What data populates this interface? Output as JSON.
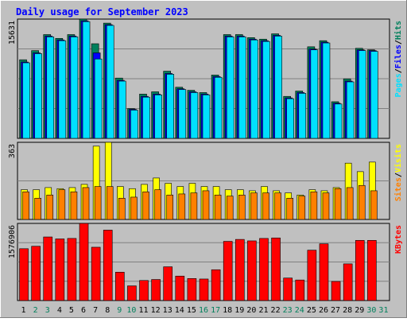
{
  "chart_data": [
    {
      "type": "bar",
      "title": "Daily usage for September 2023",
      "ymax_label": "15631",
      "ylim": [
        0,
        15631
      ],
      "categories": [
        "1",
        "2",
        "3",
        "4",
        "5",
        "6",
        "7",
        "8",
        "9",
        "10",
        "11",
        "12",
        "13",
        "14",
        "15",
        "16",
        "17",
        "18",
        "19",
        "20",
        "21",
        "22",
        "23",
        "24",
        "25",
        "26",
        "27",
        "28",
        "29",
        "30",
        "31"
      ],
      "weekend_days": [
        "2",
        "3",
        "9",
        "10",
        "16",
        "17",
        "23",
        "24",
        "30",
        "31"
      ],
      "legend": [
        "Pages",
        "Files",
        "Hits"
      ],
      "legend_separator": "/",
      "series": [
        {
          "name": "Hits",
          "color": "#00805c",
          "values": [
            10300,
            11500,
            13600,
            13100,
            13600,
            15631,
            12400,
            15100,
            7900,
            3900,
            5800,
            6100,
            8800,
            6700,
            6300,
            6000,
            8300,
            13600,
            13600,
            13200,
            13000,
            13700,
            5500,
            6200,
            12000,
            12800,
            4800,
            7800,
            11800,
            11600,
            null
          ]
        },
        {
          "name": "Files",
          "color": "#0000ff",
          "values": [
            10000,
            11200,
            13400,
            12900,
            13400,
            15400,
            11200,
            14900,
            7600,
            3800,
            5500,
            5800,
            8500,
            6500,
            6100,
            5800,
            8100,
            13400,
            13400,
            13000,
            12800,
            13500,
            5300,
            6000,
            11700,
            12600,
            4600,
            7500,
            11600,
            11500,
            null
          ]
        },
        {
          "name": "Pages",
          "color": "#00e0ff",
          "values": [
            9900,
            11100,
            13300,
            12800,
            13300,
            15300,
            10400,
            14800,
            7500,
            3700,
            5400,
            5700,
            8400,
            6400,
            6000,
            5700,
            8000,
            13300,
            13300,
            12900,
            12700,
            13400,
            5200,
            5900,
            11600,
            12500,
            4500,
            7400,
            11500,
            11400,
            null
          ]
        }
      ]
    },
    {
      "type": "bar",
      "ymax_label": "363",
      "ylim": [
        0,
        363
      ],
      "legend": [
        "Sites",
        "Visits"
      ],
      "legend_separator": "/",
      "series": [
        {
          "name": "Visits",
          "color": "#ffff00",
          "values": [
            140,
            140,
            150,
            145,
            150,
            165,
            345,
            363,
            155,
            145,
            165,
            195,
            170,
            155,
            170,
            155,
            155,
            140,
            140,
            135,
            155,
            135,
            125,
            115,
            140,
            135,
            150,
            265,
            225,
            270,
            null
          ]
        },
        {
          "name": "Sites",
          "color": "#ff8000",
          "values": [
            130,
            100,
            115,
            140,
            130,
            150,
            155,
            155,
            100,
            105,
            130,
            140,
            115,
            120,
            125,
            135,
            115,
            110,
            115,
            125,
            125,
            125,
            100,
            110,
            130,
            125,
            145,
            150,
            160,
            135,
            null
          ]
        }
      ]
    },
    {
      "type": "bar",
      "ymax_label": "1576906",
      "ylim": [
        0,
        1576906
      ],
      "legend": [
        "KBytes"
      ],
      "series": [
        {
          "name": "KBytes",
          "color": "#ff0000",
          "values": [
            1060000,
            1110000,
            1300000,
            1260000,
            1270000,
            1576906,
            1090000,
            1440000,
            580000,
            300000,
            410000,
            430000,
            690000,
            500000,
            450000,
            440000,
            630000,
            1210000,
            1250000,
            1220000,
            1270000,
            1280000,
            460000,
            420000,
            1030000,
            1160000,
            390000,
            750000,
            1230000,
            1230000,
            null
          ]
        }
      ]
    }
  ]
}
